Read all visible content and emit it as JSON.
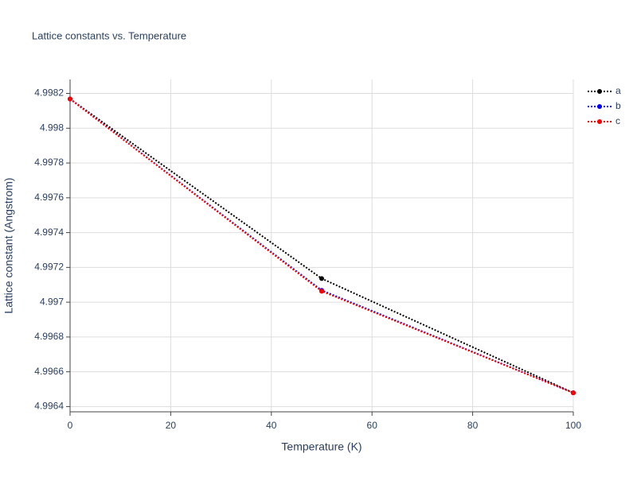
{
  "chart_data": {
    "type": "line",
    "title": "Lattice constants vs. Temperature",
    "x_label": "Temperature (K)",
    "y_label": "Lattice constant (Angstrom)",
    "x": [
      0,
      50,
      100
    ],
    "series": [
      {
        "name": "a",
        "color": "#000000",
        "values": [
          4.998168,
          4.997136,
          4.996479
        ]
      },
      {
        "name": "b",
        "color": "#0000ff",
        "values": [
          4.998168,
          4.997068,
          4.996479
        ]
      },
      {
        "name": "c",
        "color": "#ff0000",
        "values": [
          4.998168,
          4.997063,
          4.996479
        ]
      }
    ],
    "line_style": "dot",
    "xlim": [
      0,
      100
    ],
    "xticks": [
      0,
      20,
      40,
      60,
      80,
      100
    ],
    "ylim": [
      4.99637,
      4.99828
    ],
    "yticks": [
      4.9964,
      4.9966,
      4.9968,
      4.997,
      4.9972,
      4.9974,
      4.9976,
      4.9978,
      4.998,
      4.9982
    ],
    "grid": true,
    "legend": "top-right"
  }
}
